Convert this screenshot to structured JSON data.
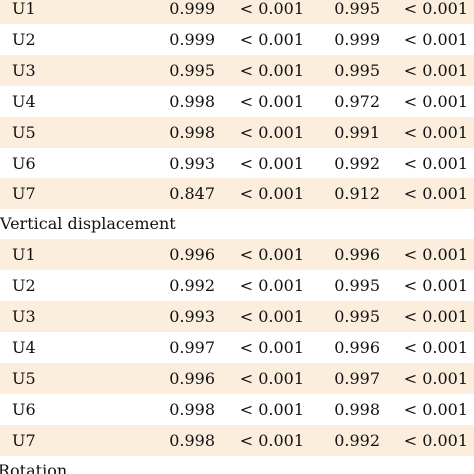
{
  "groups": [
    {
      "title": "",
      "rows": [
        {
          "label": "U1",
          "v1": "0.999",
          "p1": "< 0.001",
          "v2": "0.995",
          "p2": "< 0.001"
        },
        {
          "label": "U2",
          "v1": "0.999",
          "p1": "< 0.001",
          "v2": "0.999",
          "p2": "< 0.001"
        },
        {
          "label": "U3",
          "v1": "0.995",
          "p1": "< 0.001",
          "v2": "0.995",
          "p2": "< 0.001"
        },
        {
          "label": "U4",
          "v1": "0.998",
          "p1": "< 0.001",
          "v2": "0.972",
          "p2": "< 0.001"
        },
        {
          "label": "U5",
          "v1": "0.998",
          "p1": "< 0.001",
          "v2": "0.991",
          "p2": "< 0.001"
        },
        {
          "label": "U6",
          "v1": "0.993",
          "p1": "< 0.001",
          "v2": "0.992",
          "p2": "< 0.001"
        },
        {
          "label": "U7",
          "v1": "0.847",
          "p1": "< 0.001",
          "v2": "0.912",
          "p2": "< 0.001"
        }
      ]
    },
    {
      "title": "Vertical displacement",
      "rows": [
        {
          "label": "U1",
          "v1": "0.996",
          "p1": "< 0.001",
          "v2": "0.996",
          "p2": "< 0.001"
        },
        {
          "label": "U2",
          "v1": "0.992",
          "p1": "< 0.001",
          "v2": "0.995",
          "p2": "< 0.001"
        },
        {
          "label": "U3",
          "v1": "0.993",
          "p1": "< 0.001",
          "v2": "0.995",
          "p2": "< 0.001"
        },
        {
          "label": "U4",
          "v1": "0.997",
          "p1": "< 0.001",
          "v2": "0.996",
          "p2": "< 0.001"
        },
        {
          "label": "U5",
          "v1": "0.996",
          "p1": "< 0.001",
          "v2": "0.997",
          "p2": "< 0.001"
        },
        {
          "label": "U6",
          "v1": "0.998",
          "p1": "< 0.001",
          "v2": "0.998",
          "p2": "< 0.001"
        },
        {
          "label": "U7",
          "v1": "0.998",
          "p1": "< 0.001",
          "v2": "0.992",
          "p2": "< 0.001"
        }
      ]
    },
    {
      "title": "Rotation",
      "rows": []
    }
  ],
  "colors": {
    "row_shade": "#fbeedd",
    "text": "#111111",
    "background": "#ffffff"
  }
}
